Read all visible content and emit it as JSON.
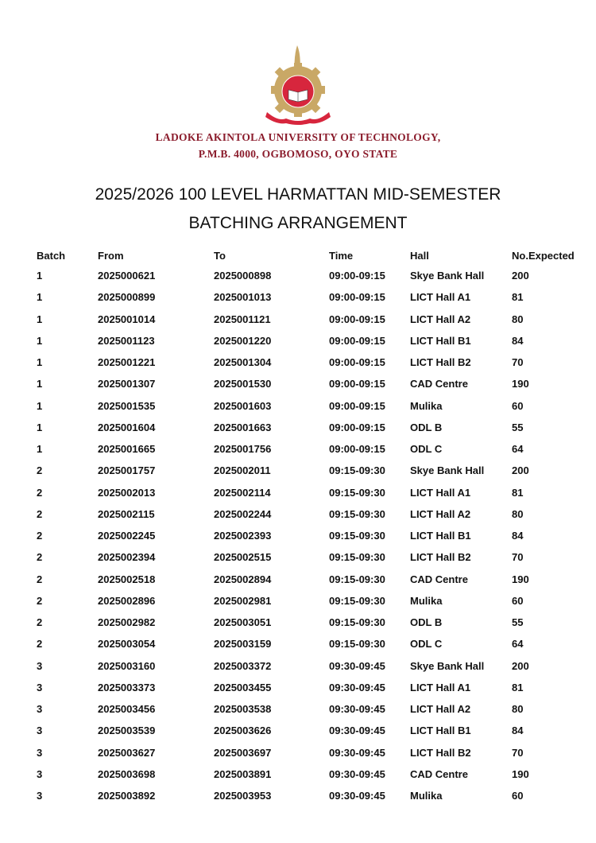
{
  "header": {
    "university_name": "LADOKE AKINTOLA UNIVERSITY OF TECHNOLOGY,",
    "address": "P.M.B. 4000, OGBOMOSO, OYO STATE",
    "title_line1": "2025/2026 100 LEVEL HARMATTAN MID-SEMESTER",
    "title_line2": "BATCHING ARRANGEMENT",
    "logo_icon": "university-crest",
    "brand_color": "#8b1c2c"
  },
  "table": {
    "columns": [
      "Batch",
      "From",
      "To",
      "Time",
      "Hall",
      "No.Expected"
    ],
    "rows": [
      [
        "1",
        "2025000621",
        "2025000898",
        "09:00-09:15",
        "Skye Bank Hall",
        "200"
      ],
      [
        "1",
        "2025000899",
        "2025001013",
        "09:00-09:15",
        "LICT Hall A1",
        "81"
      ],
      [
        "1",
        "2025001014",
        "2025001121",
        "09:00-09:15",
        "LICT Hall A2",
        "80"
      ],
      [
        "1",
        "2025001123",
        "2025001220",
        "09:00-09:15",
        "LICT Hall B1",
        "84"
      ],
      [
        "1",
        "2025001221",
        "2025001304",
        "09:00-09:15",
        "LICT Hall B2",
        "70"
      ],
      [
        "1",
        "2025001307",
        "2025001530",
        "09:00-09:15",
        "CAD Centre",
        "190"
      ],
      [
        "1",
        "2025001535",
        "2025001603",
        "09:00-09:15",
        "Mulika",
        "60"
      ],
      [
        "1",
        "2025001604",
        "2025001663",
        "09:00-09:15",
        "ODL B",
        "55"
      ],
      [
        "1",
        "2025001665",
        "2025001756",
        "09:00-09:15",
        "ODL C",
        "64"
      ],
      [
        "2",
        "2025001757",
        "2025002011",
        "09:15-09:30",
        "Skye Bank Hall",
        "200"
      ],
      [
        "2",
        "2025002013",
        "2025002114",
        "09:15-09:30",
        "LICT Hall A1",
        "81"
      ],
      [
        "2",
        "2025002115",
        "2025002244",
        "09:15-09:30",
        "LICT Hall A2",
        "80"
      ],
      [
        "2",
        "2025002245",
        "2025002393",
        "09:15-09:30",
        "LICT Hall B1",
        "84"
      ],
      [
        "2",
        "2025002394",
        "2025002515",
        "09:15-09:30",
        "LICT Hall B2",
        "70"
      ],
      [
        "2",
        "2025002518",
        "2025002894",
        "09:15-09:30",
        "CAD Centre",
        "190"
      ],
      [
        "2",
        "2025002896",
        "2025002981",
        "09:15-09:30",
        "Mulika",
        "60"
      ],
      [
        "2",
        "2025002982",
        "2025003051",
        "09:15-09:30",
        "ODL B",
        "55"
      ],
      [
        "2",
        "2025003054",
        "2025003159",
        "09:15-09:30",
        "ODL C",
        "64"
      ],
      [
        "3",
        "2025003160",
        "2025003372",
        "09:30-09:45",
        "Skye Bank Hall",
        "200"
      ],
      [
        "3",
        "2025003373",
        "2025003455",
        "09:30-09:45",
        "LICT Hall A1",
        "81"
      ],
      [
        "3",
        "2025003456",
        "2025003538",
        "09:30-09:45",
        "LICT Hall A2",
        "80"
      ],
      [
        "3",
        "2025003539",
        "2025003626",
        "09:30-09:45",
        "LICT Hall B1",
        "84"
      ],
      [
        "3",
        "2025003627",
        "2025003697",
        "09:30-09:45",
        "LICT Hall B2",
        "70"
      ],
      [
        "3",
        "2025003698",
        "2025003891",
        "09:30-09:45",
        "CAD Centre",
        "190"
      ],
      [
        "3",
        "2025003892",
        "2025003953",
        "09:30-09:45",
        "Mulika",
        "60"
      ]
    ]
  }
}
